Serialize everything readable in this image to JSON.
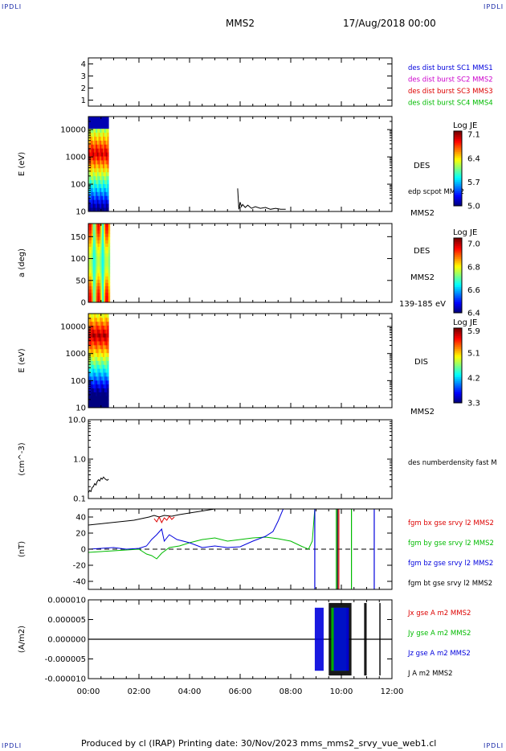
{
  "corner_tags": [
    "IPDLI",
    "IPDLI",
    "IPDLI",
    "IPDLI"
  ],
  "header": {
    "spacecraft": "MMS2",
    "date": "17/Aug/2018 00:00"
  },
  "footer": "Produced by cl (IRAP)   Printing date: 30/Nov/2023   mms_mms2_srvy_vue_web1.cl",
  "colors": {
    "black": "#000000",
    "blue": "#0000dd",
    "magenta": "#cc00cc",
    "red": "#dd0000",
    "green": "#00bb00"
  },
  "chart_data": [
    {
      "type": "line",
      "ylim": [
        0.5,
        4.5
      ],
      "yticks": [
        "1",
        "2",
        "3",
        "4"
      ],
      "legend": [
        {
          "label": "des dist burst SC1 MMS1",
          "color": "#0000dd"
        },
        {
          "label": "des dist burst SC2 MMS2",
          "color": "#cc00cc"
        },
        {
          "label": "des dist burst SC3 MMS3",
          "color": "#dd0000"
        },
        {
          "label": "des dist burst SC4 MMS4",
          "color": "#00bb00"
        }
      ],
      "series": []
    },
    {
      "type": "heatmap",
      "ylabel": "E (eV)",
      "yscale": "log",
      "ylim": [
        10,
        30000
      ],
      "yticks": [
        "10",
        "100",
        "1000",
        "10000"
      ],
      "time_range_hours": [
        0,
        0.8
      ],
      "instrument": "DES",
      "spacecraft": "MMS2",
      "colorbar": {
        "label": "Log JE",
        "ticks": [
          "5.0",
          "5.7",
          "6.4",
          "7.1"
        ],
        "range": [
          5.0,
          7.2
        ]
      },
      "overlay": {
        "name": "edp scpot MMS2",
        "x_hours": [
          5.9,
          5.95,
          6.0,
          6.05,
          6.1,
          6.2,
          6.3,
          6.45,
          6.6,
          6.8,
          7.0,
          7.2,
          7.4,
          7.6,
          7.8
        ],
        "y": [
          70,
          12,
          22,
          15,
          18,
          14,
          17,
          13,
          15,
          13,
          14,
          12,
          13,
          12,
          12
        ]
      }
    },
    {
      "type": "heatmap",
      "ylabel": "a (deg)",
      "ylim": [
        0,
        180
      ],
      "yticks": [
        "0",
        "50",
        "100",
        "150"
      ],
      "time_range_hours": [
        0,
        0.85
      ],
      "instrument": "DES",
      "spacecraft": "MMS2",
      "energy_band": "139-185 eV",
      "colorbar": {
        "label": "Log JE",
        "ticks": [
          "6.4",
          "6.6",
          "6.8",
          "7.0"
        ],
        "range": [
          6.4,
          7.05
        ]
      }
    },
    {
      "type": "heatmap",
      "ylabel": "E (eV)",
      "yscale": "log",
      "ylim": [
        10,
        30000
      ],
      "yticks": [
        "10",
        "100",
        "1000",
        "10000"
      ],
      "time_range_hours": [
        0,
        0.8
      ],
      "instrument": "DIS",
      "spacecraft": "MMS2",
      "colorbar": {
        "label": "Log JE",
        "ticks": [
          "3.3",
          "4.2",
          "5.1",
          "5.9"
        ],
        "range": [
          3.3,
          6.0
        ]
      }
    },
    {
      "type": "line",
      "ylabel": "(cm^-3)",
      "yscale": "log",
      "ylim": [
        0.1,
        10.0
      ],
      "yticks": [
        "0.1",
        "1.0",
        "10.0"
      ],
      "series": [
        {
          "name": "des numberdensity fast M",
          "color": "#000000",
          "x": [
            0.0,
            0.05,
            0.1,
            0.15,
            0.2,
            0.25,
            0.3,
            0.35,
            0.4,
            0.45,
            0.5,
            0.55,
            0.6,
            0.65,
            0.7,
            0.75,
            0.8
          ],
          "y": [
            0.14,
            0.16,
            0.15,
            0.19,
            0.2,
            0.24,
            0.22,
            0.27,
            0.3,
            0.28,
            0.33,
            0.31,
            0.35,
            0.32,
            0.3,
            0.29,
            0.31
          ]
        }
      ]
    },
    {
      "type": "line",
      "ylabel": "(nT)",
      "ylim": [
        -50,
        50
      ],
      "yticks": [
        "-40",
        "-20",
        "0",
        "20",
        "40"
      ],
      "zero_line": true,
      "series": [
        {
          "name": "fgm bx gse srvy l2 MMS2",
          "color": "#dd0000",
          "x": [
            2.6,
            2.7,
            2.8,
            2.9,
            3.0,
            3.1,
            3.2,
            3.3,
            3.4
          ],
          "y": [
            38,
            34,
            40,
            33,
            39,
            36,
            41,
            37,
            40
          ]
        },
        {
          "name": "fgm by gse srvy l2 MMS2",
          "color": "#00bb00",
          "x": [
            0.0,
            0.5,
            1.0,
            1.5,
            2.0,
            2.3,
            2.5,
            2.7,
            2.9,
            3.2,
            3.6,
            4.0,
            4.5,
            5.0,
            5.5,
            6.0,
            6.5,
            7.0,
            7.5,
            8.0,
            8.4,
            8.7,
            8.85,
            8.95
          ],
          "y": [
            -4,
            -3,
            -2,
            -1,
            0,
            -6,
            -8,
            -12,
            -5,
            2,
            4,
            8,
            12,
            14,
            10,
            12,
            14,
            15,
            13,
            10,
            4,
            0,
            10,
            50
          ]
        },
        {
          "name": "fgm bz gse srvy l2 MMS2",
          "color": "#0000dd",
          "x": [
            0.0,
            0.5,
            1.0,
            1.5,
            2.0,
            2.3,
            2.5,
            2.7,
            2.9,
            3.0,
            3.2,
            3.5,
            4.0,
            4.5,
            5.0,
            5.5,
            6.0,
            6.5,
            7.0,
            7.3,
            7.5,
            7.7
          ],
          "y": [
            0,
            1,
            2,
            0,
            1,
            4,
            12,
            18,
            25,
            10,
            18,
            12,
            8,
            2,
            4,
            2,
            3,
            10,
            16,
            22,
            35,
            50
          ]
        },
        {
          "name": "fgm bt gse srvy l2 MMS2",
          "color": "#000000",
          "x": [
            0.0,
            0.3,
            0.6,
            0.9,
            1.2,
            1.5,
            1.8,
            2.1,
            2.4,
            2.6,
            2.8,
            3.0,
            3.3,
            3.6,
            4.0,
            4.4,
            4.8,
            5.0
          ],
          "y": [
            30,
            31,
            32,
            33,
            34,
            35,
            36,
            38,
            40,
            42,
            40,
            42,
            41,
            43,
            45,
            47,
            49,
            50
          ]
        }
      ],
      "spikes": [
        {
          "x": 8.95,
          "color": "#0000dd"
        },
        {
          "x": 9.8,
          "color": "#00bb00"
        },
        {
          "x": 9.85,
          "color": "#000000"
        },
        {
          "x": 9.9,
          "color": "#dd0000"
        },
        {
          "x": 10.4,
          "color": "#00bb00"
        },
        {
          "x": 11.3,
          "color": "#0000dd"
        }
      ]
    },
    {
      "type": "line",
      "ylabel": "(A/m2)",
      "ylim": [
        -1e-05,
        1e-05
      ],
      "yticks": [
        "-0.000010",
        "-0.000005",
        "0.000000",
        "0.000005",
        "0.000010"
      ],
      "zero_line": true,
      "series": [
        {
          "name": "Jx gse A m2 MMS2",
          "color": "#dd0000"
        },
        {
          "name": "Jy gse A m2 MMS2",
          "color": "#00bb00"
        },
        {
          "name": "Jz gse A m2 MMS2",
          "color": "#0000dd"
        },
        {
          "name": "J A m2 MMS2",
          "color": "#000000"
        }
      ],
      "bursts": [
        {
          "x": [
            8.95,
            9.3
          ],
          "color": "#0000dd"
        },
        {
          "x": [
            9.5,
            10.4
          ],
          "color": "#000000"
        },
        {
          "x": [
            9.6,
            10.2
          ],
          "color": "#00bb00"
        },
        {
          "x": [
            9.7,
            10.3
          ],
          "color": "#0000dd"
        },
        {
          "x": [
            10.9,
            11.0
          ],
          "color": "#000000"
        },
        {
          "x": [
            11.5,
            11.55
          ],
          "color": "#000000"
        }
      ]
    }
  ],
  "time_axis": {
    "xlim": [
      0,
      12
    ],
    "ticks": [
      "00:00",
      "02:00",
      "04:00",
      "06:00",
      "08:00",
      "10:00",
      "12:00"
    ]
  }
}
